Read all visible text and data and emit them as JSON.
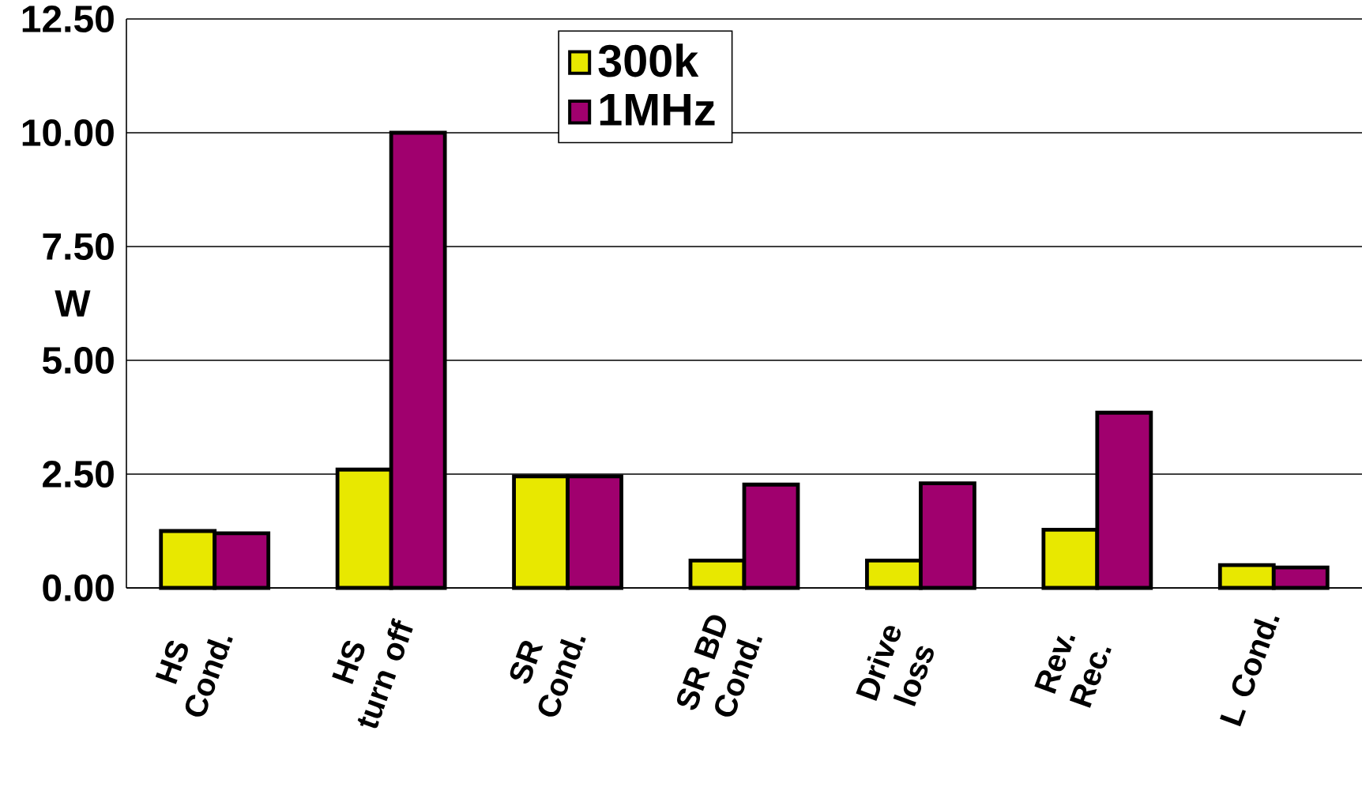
{
  "chart_data": {
    "type": "bar",
    "ylabel": "W",
    "categories": [
      "HS Cond.",
      "HS turn off",
      "SR Cond.",
      "SR BD Cond.",
      "Drive loss",
      "Rev. Rec.",
      "L Cond."
    ],
    "series": [
      {
        "name": "300k",
        "color": "#e8e800",
        "values": [
          1.25,
          2.6,
          2.45,
          0.6,
          0.6,
          1.28,
          0.5
        ]
      },
      {
        "name": "1MHz",
        "color": "#a0006e",
        "values": [
          1.2,
          10.0,
          2.45,
          2.27,
          2.3,
          3.85,
          0.45
        ]
      }
    ],
    "ylim": [
      0,
      12.5
    ],
    "yticks": [
      {
        "value": 0,
        "label": "0.00"
      },
      {
        "value": 2.5,
        "label": "2.50"
      },
      {
        "value": 5,
        "label": "5.00"
      },
      {
        "value": 7.5,
        "label": "7.50"
      },
      {
        "value": 10,
        "label": "10.00"
      },
      {
        "value": 12.5,
        "label": "12.50"
      }
    ],
    "grid": "y",
    "legend": "top"
  }
}
